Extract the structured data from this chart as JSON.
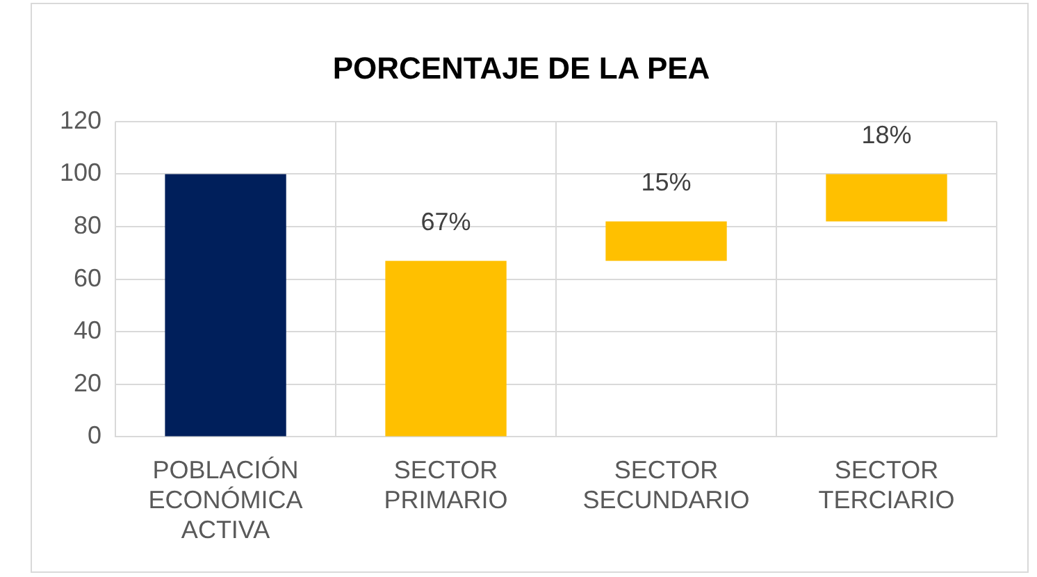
{
  "chart_data": {
    "type": "bar",
    "title": "PORCENTAJE DE LA PEA",
    "categories": [
      "POBLACIÓN ECONÓMICA ACTIVA",
      "SECTOR PRIMARIO",
      "SECTOR SECUNDARIO",
      "SECTOR TERCIARIO"
    ],
    "values": [
      100,
      67,
      15,
      18
    ],
    "base": [
      0,
      0,
      67,
      82
    ],
    "colors": [
      "#001f5b",
      "#ffc000",
      "#ffc000",
      "#ffc000"
    ],
    "value_labels": [
      null,
      "67%",
      "15%",
      "18%"
    ],
    "ylim": [
      0,
      120
    ],
    "yticks": [
      0,
      20,
      40,
      60,
      80,
      100,
      120
    ],
    "grid": true,
    "legend": false
  }
}
